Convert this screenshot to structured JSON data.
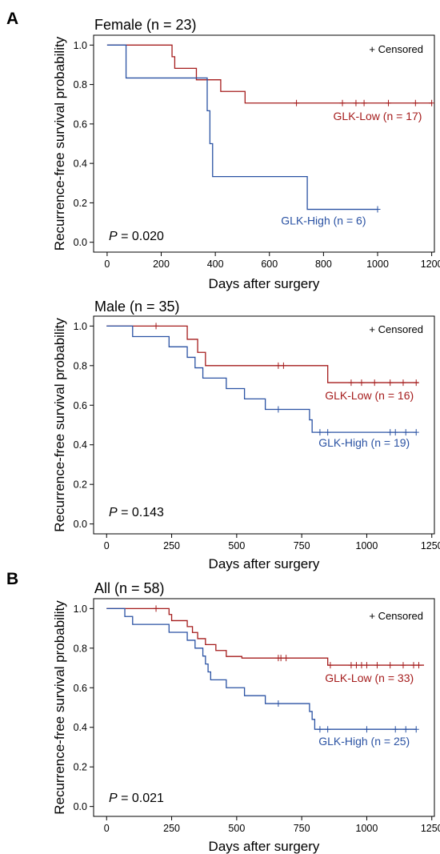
{
  "censored_legend": "+ Censored",
  "xlabel": "Days after surgery",
  "ylabel": "Recurrence-free survival probability",
  "colors": {
    "low": "#a51c1c",
    "high": "#2a52a3"
  },
  "chart_data": [
    {
      "panel_letter": "A",
      "type": "line",
      "title": "Female (n = 23)",
      "xlabel": "Days after surgery",
      "ylabel": "Recurrence-free survival probability",
      "xlim": [
        -50,
        1210
      ],
      "ylim": [
        -0.05,
        1.05
      ],
      "xticks": [
        0,
        200,
        400,
        600,
        800,
        1000,
        1200
      ],
      "yticks": [
        "0.0",
        "0.2",
        "0.4",
        "0.6",
        "0.8",
        "1.0"
      ],
      "p_prefix": "P",
      "p_value": " = 0.020",
      "series": [
        {
          "name": "GLK-Low (n = 17)",
          "key": "low",
          "steps": [
            [
              0,
              1.0
            ],
            [
              240,
              0.941
            ],
            [
              250,
              0.882
            ],
            [
              330,
              0.824
            ],
            [
              420,
              0.765
            ],
            [
              460,
              0.765
            ],
            [
              510,
              0.706
            ],
            [
              1200,
              0.706
            ]
          ],
          "censored": [
            [
              700,
              0.706
            ],
            [
              870,
              0.706
            ],
            [
              920,
              0.706
            ],
            [
              950,
              0.706
            ],
            [
              1040,
              0.706
            ],
            [
              1140,
              0.706
            ],
            [
              1200,
              0.706
            ]
          ],
          "label_at": [
            1000,
            0.62
          ]
        },
        {
          "name": "GLK-High (n = 6)",
          "key": "high",
          "steps": [
            [
              0,
              1.0
            ],
            [
              70,
              0.833
            ],
            [
              370,
              0.667
            ],
            [
              380,
              0.5
            ],
            [
              390,
              0.333
            ],
            [
              740,
              0.167
            ],
            [
              1000,
              0.167
            ]
          ],
          "censored": [
            [
              1000,
              0.167
            ]
          ],
          "label_at": [
            800,
            0.09
          ]
        }
      ]
    },
    {
      "panel_letter": "",
      "type": "line",
      "title": "Male (n = 35)",
      "xlabel": "Days after surgery",
      "ylabel": "Recurrence-free survival probability",
      "xlim": [
        -50,
        1260
      ],
      "ylim": [
        -0.05,
        1.05
      ],
      "xticks": [
        0,
        250,
        500,
        750,
        1000,
        1250
      ],
      "yticks": [
        "0.0",
        "0.2",
        "0.4",
        "0.6",
        "0.8",
        "1.0"
      ],
      "p_prefix": "P",
      "p_value": " = 0.143",
      "series": [
        {
          "name": "GLK-Low (n = 16)",
          "key": "low",
          "steps": [
            [
              0,
              1.0
            ],
            [
              310,
              0.933
            ],
            [
              350,
              0.867
            ],
            [
              380,
              0.8
            ],
            [
              850,
              0.714
            ],
            [
              1200,
              0.714
            ]
          ],
          "censored": [
            [
              190,
              1.0
            ],
            [
              660,
              0.8
            ],
            [
              680,
              0.8
            ],
            [
              940,
              0.714
            ],
            [
              980,
              0.714
            ],
            [
              1030,
              0.714
            ],
            [
              1090,
              0.714
            ],
            [
              1140,
              0.714
            ],
            [
              1190,
              0.714
            ]
          ],
          "label_at": [
            1010,
            0.63
          ]
        },
        {
          "name": "GLK-High (n = 19)",
          "key": "high",
          "steps": [
            [
              0,
              1.0
            ],
            [
              100,
              0.947
            ],
            [
              240,
              0.895
            ],
            [
              310,
              0.842
            ],
            [
              340,
              0.789
            ],
            [
              370,
              0.737
            ],
            [
              460,
              0.684
            ],
            [
              530,
              0.632
            ],
            [
              610,
              0.579
            ],
            [
              780,
              0.526
            ],
            [
              790,
              0.463
            ],
            [
              1190,
              0.463
            ]
          ],
          "censored": [
            [
              660,
              0.579
            ],
            [
              820,
              0.463
            ],
            [
              850,
              0.463
            ],
            [
              1090,
              0.463
            ],
            [
              1110,
              0.463
            ],
            [
              1150,
              0.463
            ],
            [
              1190,
              0.463
            ]
          ],
          "label_at": [
            990,
            0.39
          ]
        }
      ]
    },
    {
      "panel_letter": "B",
      "type": "line",
      "title": "All (n = 58)",
      "xlabel": "Days after surgery",
      "ylabel": "Recurrence-free survival probability",
      "xlim": [
        -50,
        1260
      ],
      "ylim": [
        -0.05,
        1.05
      ],
      "xticks": [
        0,
        250,
        500,
        750,
        1000,
        1250
      ],
      "yticks": [
        "0.0",
        "0.2",
        "0.4",
        "0.6",
        "0.8",
        "1.0"
      ],
      "p_prefix": "P",
      "p_value": " = 0.021",
      "series": [
        {
          "name": "GLK-Low (n = 33)",
          "key": "low",
          "steps": [
            [
              0,
              1.0
            ],
            [
              240,
              0.97
            ],
            [
              250,
              0.939
            ],
            [
              310,
              0.909
            ],
            [
              330,
              0.879
            ],
            [
              350,
              0.848
            ],
            [
              380,
              0.818
            ],
            [
              420,
              0.788
            ],
            [
              460,
              0.758
            ],
            [
              510,
              0.758
            ],
            [
              520,
              0.75
            ],
            [
              850,
              0.714
            ],
            [
              1220,
              0.714
            ]
          ],
          "censored": [
            [
              190,
              1.0
            ],
            [
              660,
              0.75
            ],
            [
              670,
              0.75
            ],
            [
              690,
              0.75
            ],
            [
              860,
              0.714
            ],
            [
              940,
              0.714
            ],
            [
              960,
              0.714
            ],
            [
              980,
              0.714
            ],
            [
              1000,
              0.714
            ],
            [
              1040,
              0.714
            ],
            [
              1090,
              0.714
            ],
            [
              1140,
              0.714
            ],
            [
              1180,
              0.714
            ],
            [
              1200,
              0.714
            ]
          ],
          "label_at": [
            1010,
            0.63
          ]
        },
        {
          "name": "GLK-High (n = 25)",
          "key": "high",
          "steps": [
            [
              0,
              1.0
            ],
            [
              70,
              0.96
            ],
            [
              100,
              0.92
            ],
            [
              240,
              0.88
            ],
            [
              310,
              0.84
            ],
            [
              340,
              0.8
            ],
            [
              370,
              0.76
            ],
            [
              380,
              0.72
            ],
            [
              390,
              0.68
            ],
            [
              400,
              0.64
            ],
            [
              460,
              0.6
            ],
            [
              530,
              0.56
            ],
            [
              610,
              0.52
            ],
            [
              780,
              0.48
            ],
            [
              790,
              0.44
            ],
            [
              800,
              0.39
            ],
            [
              1190,
              0.39
            ]
          ],
          "censored": [
            [
              660,
              0.52
            ],
            [
              820,
              0.39
            ],
            [
              850,
              0.39
            ],
            [
              1000,
              0.39
            ],
            [
              1110,
              0.39
            ],
            [
              1150,
              0.39
            ],
            [
              1190,
              0.39
            ]
          ],
          "label_at": [
            990,
            0.31
          ]
        }
      ]
    }
  ]
}
